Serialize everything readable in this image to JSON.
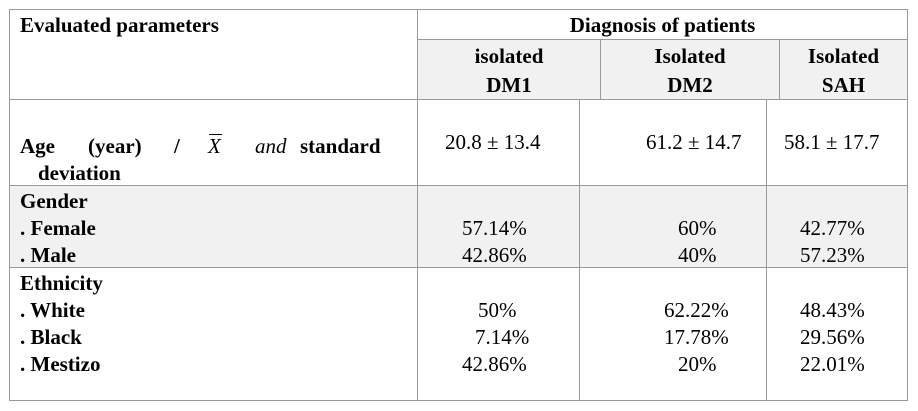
{
  "table": {
    "header": {
      "parameters": "Evaluated parameters",
      "diagnosis": "Diagnosis of patients",
      "col1_line1": "isolated",
      "col1_line2": "DM1",
      "col2_line1": "Isolated",
      "col2_line2": "DM2",
      "col3_line1": "Isolated",
      "col3_line2": "SAH"
    },
    "age": {
      "label_part1": "Age",
      "label_part2": "(year)",
      "label_slash": "/",
      "label_symbol": "X",
      "label_and": "and",
      "label_standard": "standard",
      "label_line2": "deviation",
      "dm1": "20.8 ± 13.4",
      "dm2": "61.2 ± 14.7",
      "sah": "58.1 ± 17.7"
    },
    "gender": {
      "title": "Gender",
      "female_label": ". Female",
      "male_label": ". Male",
      "female": [
        "57.14%",
        "60%",
        "42.77%"
      ],
      "male": [
        "42.86%",
        "40%",
        "57.23%"
      ]
    },
    "ethnicity": {
      "title": "Ethnicity",
      "white_label": ". White",
      "black_label": ". Black",
      "mestizo_label": ". Mestizo",
      "white": [
        "50%",
        "62.22%",
        "48.43%"
      ],
      "black": [
        "7.14%",
        "17.78%",
        "29.56%"
      ],
      "mestizo": [
        "42.86%",
        "20%",
        "22.01%"
      ]
    }
  },
  "colors": {
    "grid": "#9a9a9a",
    "shade": "#f1f1f1"
  }
}
